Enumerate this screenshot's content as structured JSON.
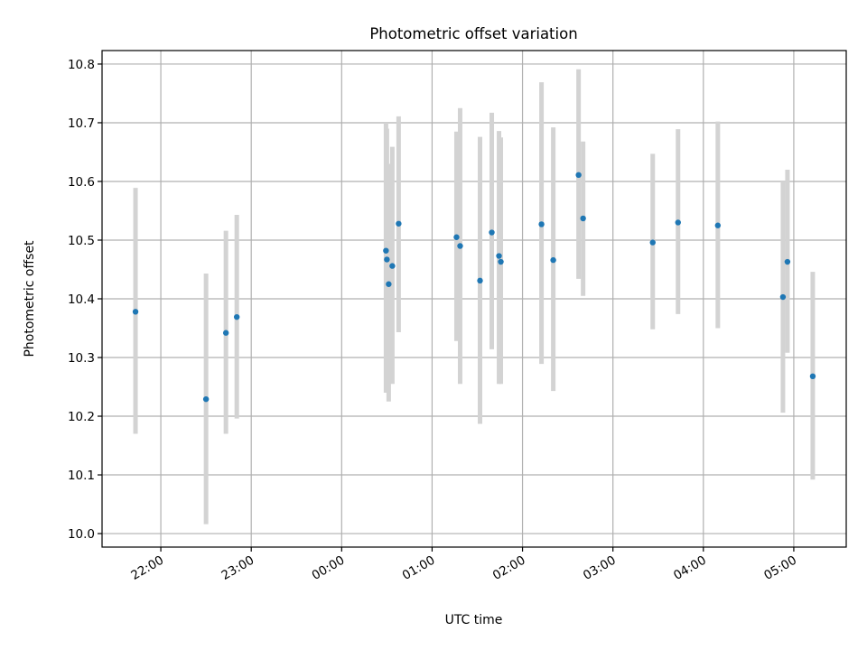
{
  "chart_data": {
    "type": "scatter",
    "title": "Photometric offset variation",
    "xlabel": "UTC time",
    "ylabel": "Photometric offset",
    "x_unit": "hours since 00:00 UTC",
    "xlim": [
      -2.65,
      5.58
    ],
    "ylim": [
      9.977,
      10.823
    ],
    "grid": true,
    "legend": "none",
    "x_ticks": [
      {
        "value": -2,
        "label": "22:00"
      },
      {
        "value": -1,
        "label": "23:00"
      },
      {
        "value": 0,
        "label": "00:00"
      },
      {
        "value": 1,
        "label": "01:00"
      },
      {
        "value": 2,
        "label": "02:00"
      },
      {
        "value": 3,
        "label": "03:00"
      },
      {
        "value": 4,
        "label": "04:00"
      },
      {
        "value": 5,
        "label": "05:00"
      }
    ],
    "y_ticks": [
      {
        "value": 10.0,
        "label": "10.0"
      },
      {
        "value": 10.1,
        "label": "10.1"
      },
      {
        "value": 10.2,
        "label": "10.2"
      },
      {
        "value": 10.3,
        "label": "10.3"
      },
      {
        "value": 10.4,
        "label": "10.4"
      },
      {
        "value": 10.5,
        "label": "10.5"
      },
      {
        "value": 10.6,
        "label": "10.6"
      },
      {
        "value": 10.7,
        "label": "10.7"
      },
      {
        "value": 10.8,
        "label": "10.8"
      }
    ],
    "points": [
      {
        "x": -2.28,
        "y": 10.378,
        "err_low": 10.17,
        "err_high": 10.589
      },
      {
        "x": -1.5,
        "y": 10.229,
        "err_low": 10.016,
        "err_high": 10.443
      },
      {
        "x": -1.28,
        "y": 10.342,
        "err_low": 10.17,
        "err_high": 10.516
      },
      {
        "x": -1.16,
        "y": 10.369,
        "err_low": 10.196,
        "err_high": 10.543
      },
      {
        "x": 0.49,
        "y": 10.482,
        "err_low": 10.24,
        "err_high": 10.7
      },
      {
        "x": 0.5,
        "y": 10.467,
        "err_low": 10.24,
        "err_high": 10.69
      },
      {
        "x": 0.52,
        "y": 10.425,
        "err_low": 10.225,
        "err_high": 10.63
      },
      {
        "x": 0.56,
        "y": 10.456,
        "err_low": 10.255,
        "err_high": 10.659
      },
      {
        "x": 0.63,
        "y": 10.528,
        "err_low": 10.343,
        "err_high": 10.711
      },
      {
        "x": 1.27,
        "y": 10.505,
        "err_low": 10.328,
        "err_high": 10.685
      },
      {
        "x": 1.31,
        "y": 10.49,
        "err_low": 10.255,
        "err_high": 10.725
      },
      {
        "x": 1.53,
        "y": 10.431,
        "err_low": 10.187,
        "err_high": 10.676
      },
      {
        "x": 1.66,
        "y": 10.513,
        "err_low": 10.314,
        "err_high": 10.717
      },
      {
        "x": 1.74,
        "y": 10.473,
        "err_low": 10.255,
        "err_high": 10.686
      },
      {
        "x": 1.76,
        "y": 10.463,
        "err_low": 10.255,
        "err_high": 10.675
      },
      {
        "x": 2.21,
        "y": 10.527,
        "err_low": 10.289,
        "err_high": 10.769
      },
      {
        "x": 2.34,
        "y": 10.466,
        "err_low": 10.243,
        "err_high": 10.692
      },
      {
        "x": 2.62,
        "y": 10.611,
        "err_low": 10.434,
        "err_high": 10.791
      },
      {
        "x": 2.67,
        "y": 10.537,
        "err_low": 10.405,
        "err_high": 10.668
      },
      {
        "x": 3.44,
        "y": 10.496,
        "err_low": 10.348,
        "err_high": 10.647
      },
      {
        "x": 3.72,
        "y": 10.53,
        "err_low": 10.374,
        "err_high": 10.689
      },
      {
        "x": 4.16,
        "y": 10.525,
        "err_low": 10.35,
        "err_high": 10.702
      },
      {
        "x": 4.88,
        "y": 10.403,
        "err_low": 10.206,
        "err_high": 10.6
      },
      {
        "x": 4.93,
        "y": 10.463,
        "err_low": 10.308,
        "err_high": 10.62
      },
      {
        "x": 5.21,
        "y": 10.268,
        "err_low": 10.092,
        "err_high": 10.446
      }
    ],
    "marker_color": "#1f77b4",
    "errorbar_color": "#d3d3d3",
    "grid_color": "#b0b0b0"
  }
}
